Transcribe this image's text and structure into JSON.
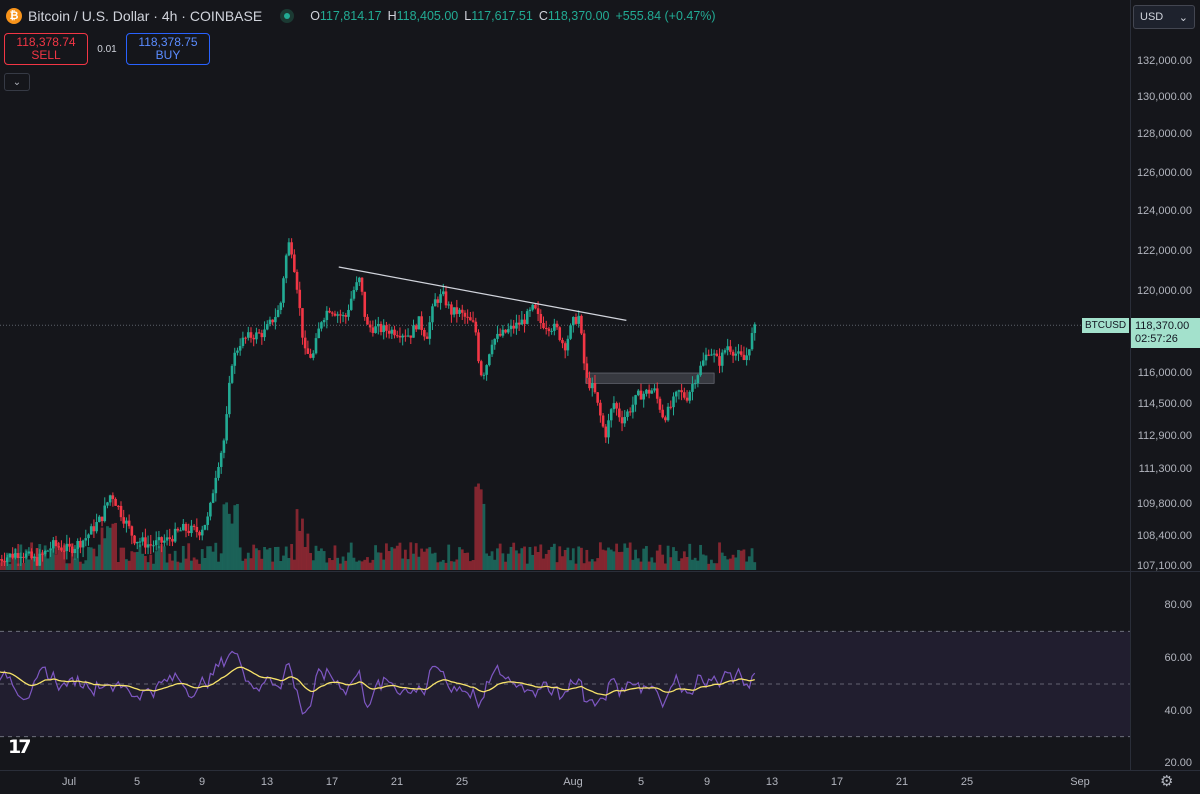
{
  "header": {
    "symbol_title": "Bitcoin / U.S. Dollar · 4h · COINBASE",
    "symbol_icon": "bitcoin-icon",
    "ohlc": [
      {
        "key": "O",
        "value": "117,814.17"
      },
      {
        "key": "H",
        "value": "118,405.00"
      },
      {
        "key": "L",
        "value": "117,617.51"
      },
      {
        "key": "C",
        "value": "118,370.00"
      }
    ],
    "change": "+555.84 (+0.47%)"
  },
  "trade": {
    "sell_price": "118,378.74",
    "sell_label": "SELL",
    "spread": "0.01",
    "buy_price": "118,378.75",
    "buy_label": "BUY"
  },
  "currency": "USD",
  "price_axis": {
    "labels": [
      "132,000.00",
      "130,000.00",
      "128,000.00",
      "126,000.00",
      "124,000.00",
      "122,000.00",
      "120,000.00",
      "118,000.00",
      "116,000.00",
      "114,500.00",
      "112,900.00",
      "111,300.00",
      "109,800.00",
      "108,400.00",
      "107,100.00"
    ]
  },
  "rsi_axis": {
    "labels": [
      "80.00",
      "60.00",
      "40.00",
      "20.00"
    ]
  },
  "last_price": {
    "symbol": "BTCUSD",
    "price": "118,370.00",
    "countdown": "02:57:26"
  },
  "time_axis": {
    "labels": [
      "Jul",
      "5",
      "9",
      "13",
      "17",
      "21",
      "25",
      "Aug",
      "5",
      "9",
      "13",
      "17",
      "21",
      "25",
      "Sep"
    ]
  },
  "chart_data": {
    "type": "candlestick",
    "title": "Bitcoin / U.S. Dollar · 4h · COINBASE",
    "price_range": [
      107100,
      133000
    ],
    "rsi_range": [
      20,
      85
    ],
    "trendline": {
      "from": [
        "Jul 17",
        121200
      ],
      "to": [
        "Aug 4",
        118600
      ]
    },
    "zone": {
      "from": "Aug 1",
      "to": "Aug 8",
      "low": 115500,
      "high": 116000
    },
    "last_close": 118370,
    "colors": {
      "up": "#22ab94",
      "down": "#f23645",
      "rsi": "#7e57c2",
      "rsi_ma": "#f7e36a",
      "background": "#15161b"
    },
    "indicators": [
      "Volume",
      "RSI 14"
    ]
  },
  "branding": {
    "logo_icon": "tradingview-logo-icon",
    "settings_icon": "gear-icon"
  }
}
